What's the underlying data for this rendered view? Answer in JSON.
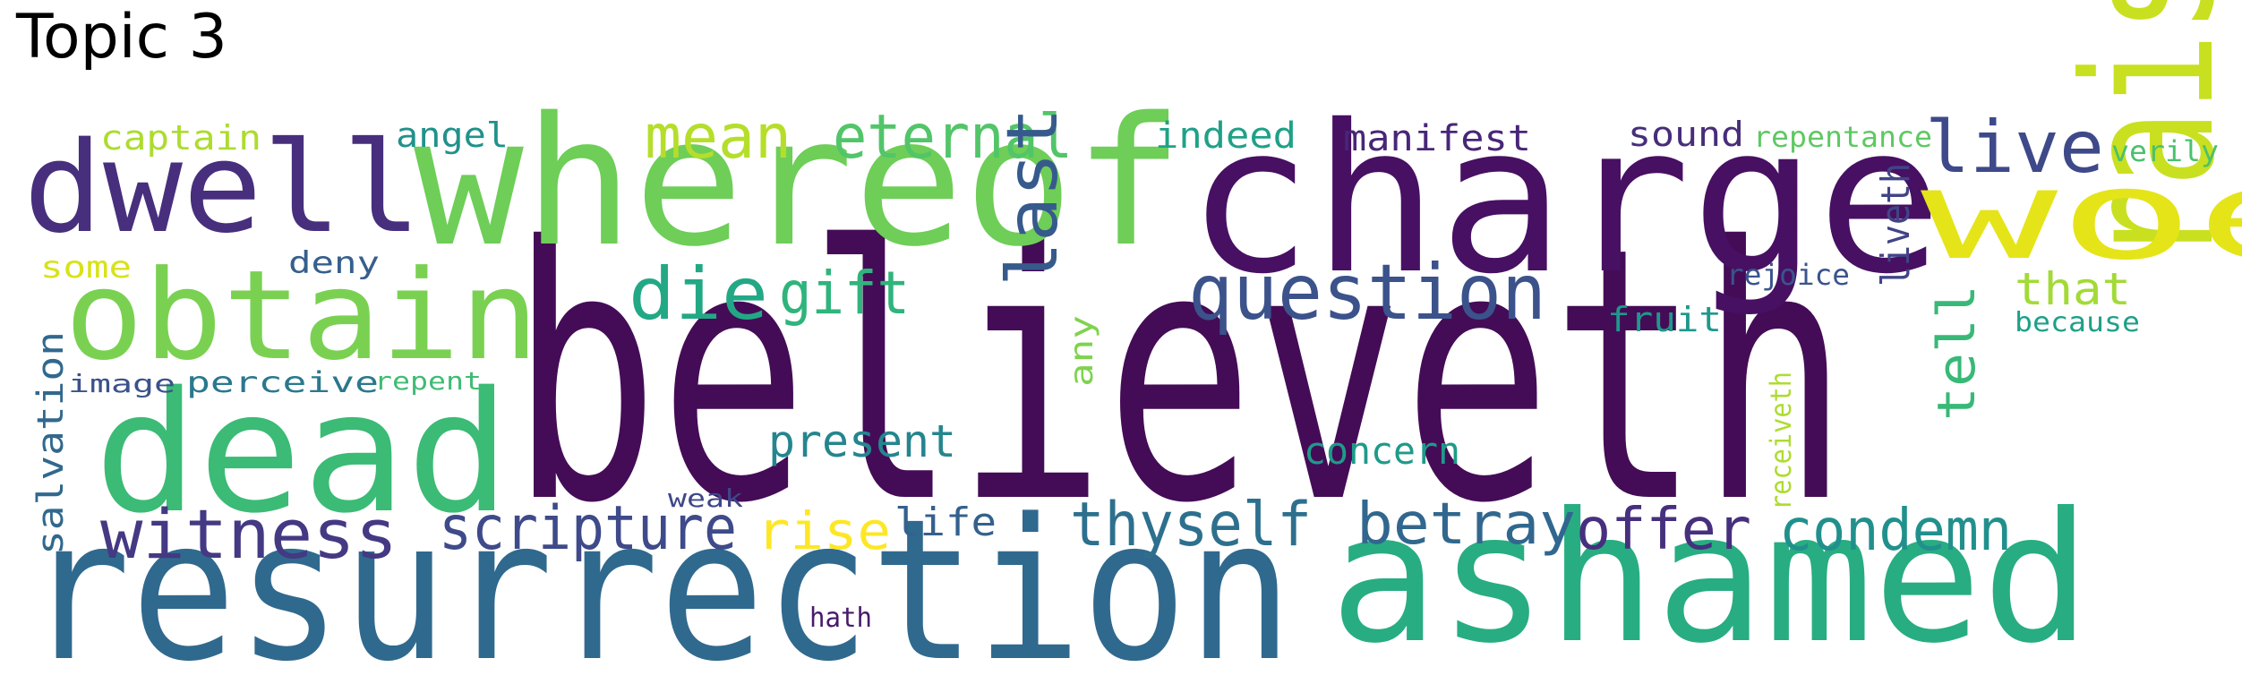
{
  "title": "Topic 3",
  "words": [
    {
      "text": "believeth",
      "color": "#440c56"
    },
    {
      "text": "resurrection",
      "color": "#30698e"
    },
    {
      "text": "ashamed",
      "color": "#27ad81"
    },
    {
      "text": "charge",
      "color": "#471063"
    },
    {
      "text": "whereof",
      "color": "#6ece58"
    },
    {
      "text": "dead",
      "color": "#3bbb75"
    },
    {
      "text": "dwell",
      "color": "#472f7d"
    },
    {
      "text": "obtain",
      "color": "#7ad151"
    },
    {
      "text": "raise",
      "color": "#c8e020"
    },
    {
      "text": "woe",
      "color": "#e5e419"
    },
    {
      "text": "question",
      "color": "#3b528b"
    },
    {
      "text": "witness",
      "color": "#443983"
    },
    {
      "text": "scripture",
      "color": "#3e4a89"
    },
    {
      "text": "thyself",
      "color": "#2d708e"
    },
    {
      "text": "betray",
      "color": "#31678e"
    },
    {
      "text": "offer",
      "color": "#46307e"
    },
    {
      "text": "condemn",
      "color": "#21908d"
    },
    {
      "text": "eternal",
      "color": "#52c569"
    },
    {
      "text": "mean",
      "color": "#b5de2b"
    },
    {
      "text": "live",
      "color": "#3e4989"
    },
    {
      "text": "die",
      "color": "#22a884"
    },
    {
      "text": "gift",
      "color": "#2fb47c"
    },
    {
      "text": "last",
      "color": "#375a8c"
    },
    {
      "text": "present",
      "color": "#25858e"
    },
    {
      "text": "rise",
      "color": "#fde725"
    },
    {
      "text": "life",
      "color": "#34618d"
    },
    {
      "text": "concern",
      "color": "#1f9a8a"
    },
    {
      "text": "tell",
      "color": "#38b977"
    },
    {
      "text": "that",
      "color": "#a2da37"
    },
    {
      "text": "liveth",
      "color": "#414487"
    },
    {
      "text": "receiveth",
      "color": "#addc30"
    },
    {
      "text": "captain",
      "color": "#addc30"
    },
    {
      "text": "angel",
      "color": "#21918c"
    },
    {
      "text": "indeed",
      "color": "#1fa187"
    },
    {
      "text": "manifest",
      "color": "#482677"
    },
    {
      "text": "sound",
      "color": "#472d7b"
    },
    {
      "text": "repentance",
      "color": "#5ec962"
    },
    {
      "text": "verily",
      "color": "#4ac16d"
    },
    {
      "text": "some",
      "color": "#d8e219"
    },
    {
      "text": "deny",
      "color": "#355f8d"
    },
    {
      "text": "rejoice",
      "color": "#3a548c"
    },
    {
      "text": "fruit",
      "color": "#1f988b"
    },
    {
      "text": "because",
      "color": "#1fa088"
    },
    {
      "text": "any",
      "color": "#7fd34e"
    },
    {
      "text": "salvation",
      "color": "#31688e"
    },
    {
      "text": "image",
      "color": "#3b528b"
    },
    {
      "text": "perceive",
      "color": "#2a788e"
    },
    {
      "text": "repent",
      "color": "#3fbc73"
    },
    {
      "text": "weak",
      "color": "#3f4788"
    },
    {
      "text": "hath",
      "color": "#481a6c"
    }
  ]
}
